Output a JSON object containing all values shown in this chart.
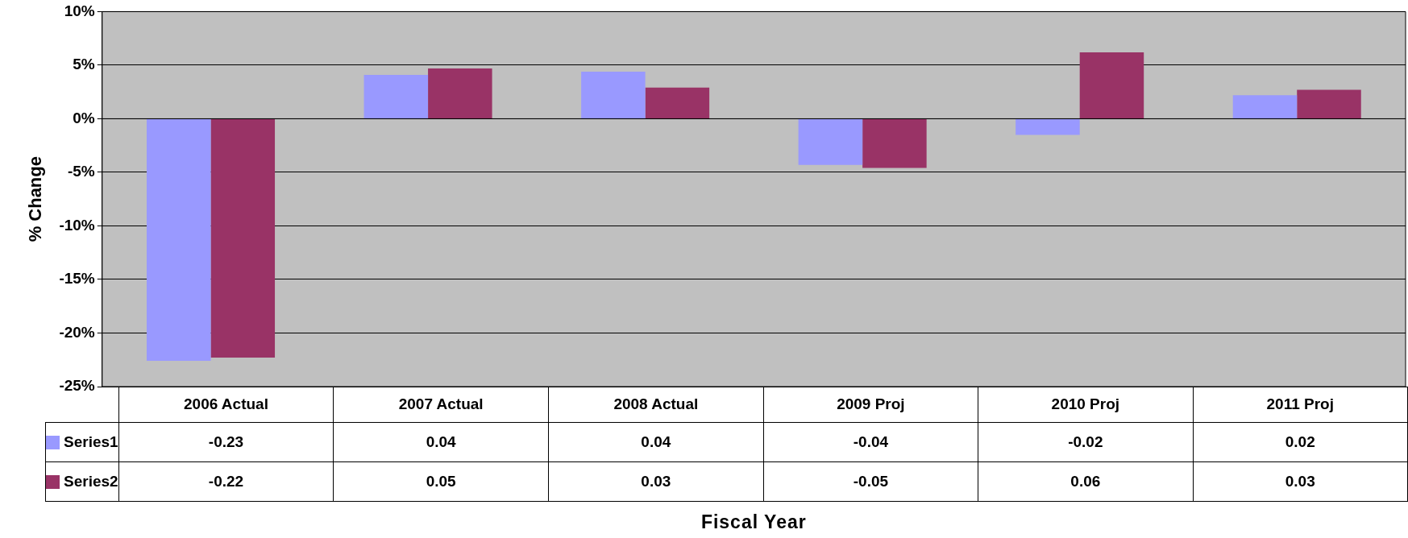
{
  "chart_data": {
    "type": "bar",
    "annotations": [
      "Fiscal Year"
    ],
    "ylabel": "% Change",
    "categories": [
      "2006 Actual",
      "2007 Actual",
      "2008 Actual",
      "2009 Proj",
      "2010 Proj",
      "2011 Proj"
    ],
    "series": [
      {
        "name": "Series1",
        "color": "#9999ff",
        "values": [
          -0.226,
          0.041,
          0.044,
          -0.043,
          -0.015,
          0.022
        ],
        "value_labels": [
          "-0.23",
          "0.04",
          "0.04",
          "-0.04",
          "-0.02",
          "0.02"
        ]
      },
      {
        "name": "Series2",
        "color": "#993366",
        "values": [
          -0.223,
          0.047,
          0.029,
          -0.046,
          0.062,
          0.027
        ],
        "value_labels": [
          "-0.22",
          "0.05",
          "0.03",
          "-0.05",
          "0.06",
          "0.03"
        ]
      }
    ],
    "ylim": [
      -0.25,
      0.1
    ],
    "yticks": [
      {
        "value": -0.25,
        "label": "-25%"
      },
      {
        "value": -0.2,
        "label": "-20%"
      },
      {
        "value": -0.15,
        "label": "-15%"
      },
      {
        "value": -0.1,
        "label": "-10%"
      },
      {
        "value": -0.05,
        "label": "-5%"
      },
      {
        "value": 0,
        "label": "0%"
      },
      {
        "value": 0.05,
        "label": "5%"
      },
      {
        "value": 0.1,
        "label": "10%"
      }
    ],
    "grid": "y",
    "legend": "bottom"
  }
}
